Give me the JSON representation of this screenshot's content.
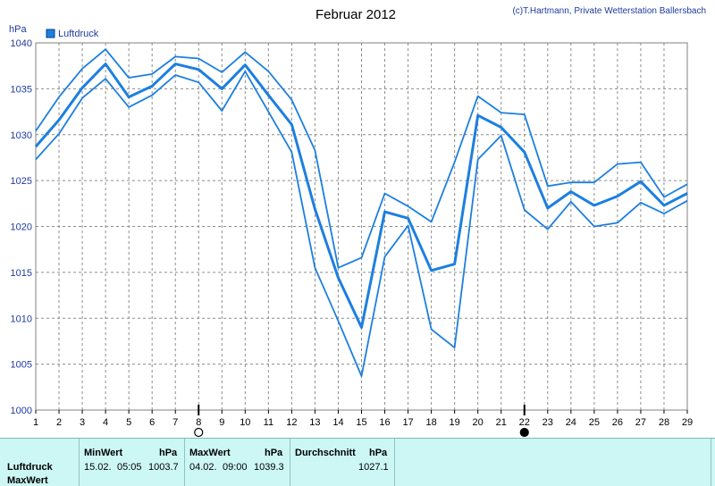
{
  "colors": {
    "line": "#1c7fe0",
    "grid": "#8c8c8c",
    "axis": "#808080",
    "footer_bg": "#ccf7f5"
  },
  "chart_data": {
    "type": "line",
    "title": "Februar 2012",
    "credit": "(c)T.Hartmann, Private Wetterstation Ballersbach",
    "ylabel": "hPa",
    "ylim": [
      1000,
      1040
    ],
    "yticks": [
      1000,
      1005,
      1010,
      1015,
      1020,
      1025,
      1030,
      1035,
      1040
    ],
    "x": [
      1,
      2,
      3,
      4,
      5,
      6,
      7,
      8,
      9,
      10,
      11,
      12,
      13,
      14,
      15,
      16,
      17,
      18,
      19,
      20,
      21,
      22,
      23,
      24,
      25,
      26,
      27,
      28,
      29
    ],
    "xlim": [
      1,
      29
    ],
    "grid": true,
    "legend": {
      "position": "top-left",
      "entries": [
        "Luftdruck"
      ]
    },
    "moon_phases": [
      {
        "day": 8,
        "phase": "full moon"
      },
      {
        "day": 22,
        "phase": "new moon"
      }
    ],
    "series": [
      {
        "name": "Luftdruck",
        "values": [
          1028.7,
          1031.6,
          1035.1,
          1037.7,
          1034.1,
          1035.3,
          1037.7,
          1037.1,
          1035.0,
          1037.6,
          1034.3,
          1031.1,
          1021.9,
          1014.4,
          1009.0,
          1021.6,
          1020.9,
          1015.2,
          1015.9,
          1032.1,
          1030.8,
          1028.1,
          1022.0,
          1023.8,
          1022.3,
          1023.3,
          1024.9,
          1022.3,
          1023.6
        ]
      },
      {
        "values": [
          1030.4,
          1034.1,
          1037.2,
          1039.3,
          1036.2,
          1036.6,
          1038.5,
          1038.3,
          1036.8,
          1039.0,
          1036.9,
          1033.8,
          1028.3,
          1015.5,
          1016.6,
          1023.6,
          1022.2,
          1020.5,
          1027.0,
          1034.2,
          1032.4,
          1032.2,
          1024.4,
          1024.8,
          1024.8,
          1026.8,
          1027.0,
          1023.2,
          1024.6
        ]
      },
      {
        "values": [
          1027.3,
          1030.1,
          1034.0,
          1036.1,
          1033.0,
          1034.3,
          1036.5,
          1035.7,
          1032.6,
          1036.9,
          1032.5,
          1028.1,
          1015.5,
          1009.7,
          1003.7,
          1016.7,
          1020.1,
          1008.8,
          1006.8,
          1027.3,
          1029.9,
          1021.8,
          1019.7,
          1022.7,
          1020.0,
          1020.4,
          1022.6,
          1021.4,
          1022.8
        ]
      }
    ]
  },
  "footer": {
    "header": {
      "min_label": "MinWert",
      "min_unit": "hPa",
      "max_label": "MaxWert",
      "max_unit": "hPa",
      "avg_label": "Durchschnitt",
      "avg_unit": "hPa"
    },
    "rows": [
      {
        "label": "Luftdruck",
        "min_date": "15.02.",
        "min_time": "05:05",
        "min_value": "1003.7",
        "max_date": "04.02.",
        "max_time": "09:00",
        "max_value": "1039.3",
        "avg_value": "1027.1"
      },
      {
        "label": "MaxWert"
      }
    ]
  }
}
